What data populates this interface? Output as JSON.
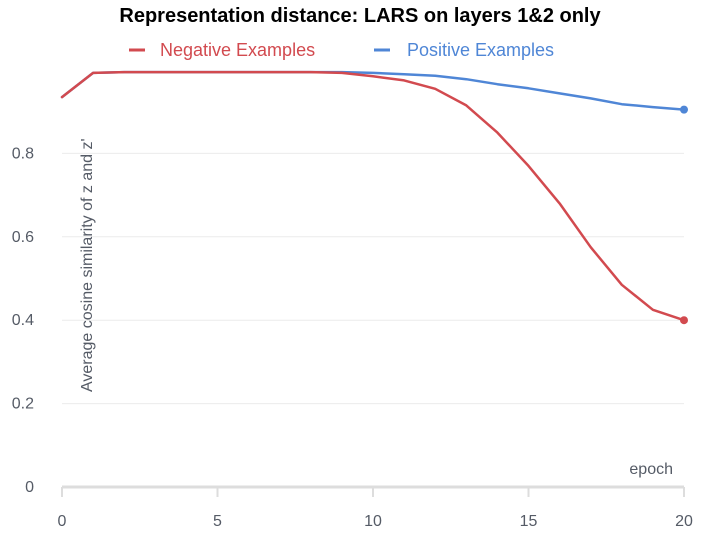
{
  "chart_data": {
    "type": "line",
    "title": "Representation distance: LARS on layers 1&2 only",
    "xlabel": "epoch",
    "ylabel": "Average cosine similarity of z and z'",
    "xlim": [
      0,
      20
    ],
    "ylim": [
      0,
      1
    ],
    "x_ticks": [
      0,
      5,
      10,
      15,
      20
    ],
    "y_ticks": [
      0,
      0.2,
      0.4,
      0.6,
      0.8
    ],
    "x_tick_labels": [
      "0",
      "5",
      "10",
      "15",
      "20"
    ],
    "y_tick_labels": [
      "0",
      "0.2",
      "0.4",
      "0.6",
      "0.8"
    ],
    "grid": true,
    "legend_position": "top",
    "x": [
      0,
      1,
      2,
      3,
      4,
      5,
      6,
      7,
      8,
      9,
      10,
      11,
      12,
      13,
      14,
      15,
      16,
      17,
      18,
      19,
      20
    ],
    "series": [
      {
        "name": "Negative Examples",
        "color": "#d24a4f",
        "values": [
          0.935,
          0.993,
          0.995,
          0.995,
          0.995,
          0.995,
          0.995,
          0.995,
          0.995,
          0.993,
          0.985,
          0.975,
          0.955,
          0.915,
          0.85,
          0.77,
          0.68,
          0.575,
          0.485,
          0.425,
          0.4
        ]
      },
      {
        "name": "Positive Examples",
        "color": "#4f86d6",
        "values": [
          0.935,
          0.993,
          0.995,
          0.995,
          0.995,
          0.995,
          0.995,
          0.995,
          0.995,
          0.995,
          0.993,
          0.99,
          0.986,
          0.978,
          0.966,
          0.956,
          0.944,
          0.932,
          0.918,
          0.911,
          0.905
        ]
      }
    ]
  }
}
